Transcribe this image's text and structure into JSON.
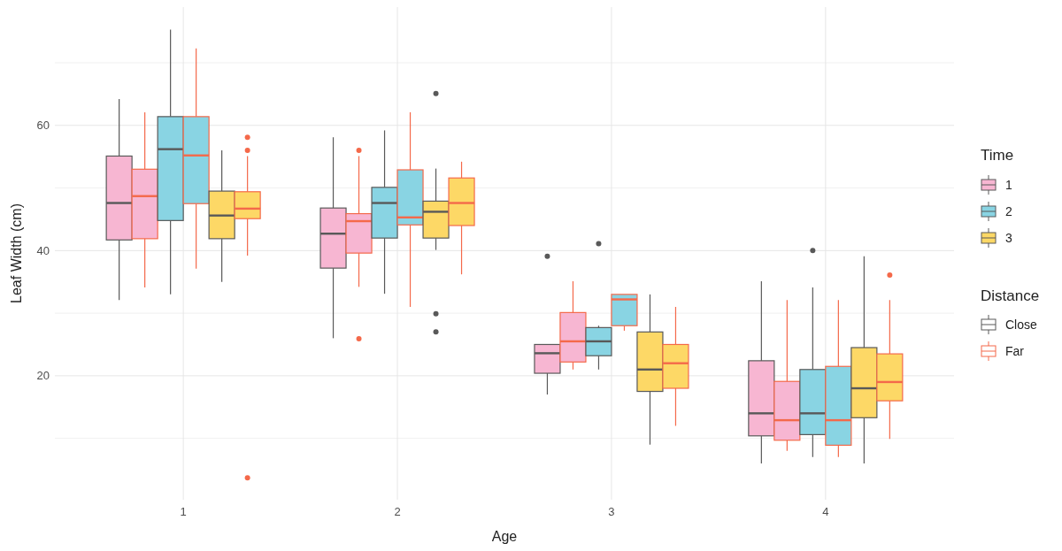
{
  "chart_data": {
    "type": "box",
    "xlabel": "Age",
    "ylabel": "Leaf Width (cm)",
    "legend_title": "Time",
    "annotations": [
      "Distance",
      "Close",
      "Far"
    ],
    "categories": [
      "1",
      "2",
      "3",
      "4"
    ],
    "ylim": [
      0.2,
      78.9
    ],
    "yticks": [
      {
        "value": 10,
        "label": null
      },
      20,
      {
        "value": 30,
        "label": null
      },
      40,
      {
        "value": 50,
        "label": null
      },
      60,
      {
        "value": 70,
        "label": null
      }
    ],
    "grid": true,
    "legend": "right",
    "series": [
      {
        "name": "1",
        "color": "#f7b6d2",
        "boxes": [
          {
            "low": 32.1,
            "q1": 41.7,
            "median": 47.6,
            "q3": 55.1,
            "high": 64.2
          },
          {
            "low": 26.0,
            "q1": 37.2,
            "median": 42.7,
            "q3": 46.8,
            "high": 58.1
          },
          {
            "low": 17.0,
            "q1": 20.4,
            "median": 23.6,
            "q3": 25.0,
            "high": 25.0,
            "outliers": [
              39.1
            ]
          },
          {
            "low": 6.0,
            "q1": 10.4,
            "median": 14.0,
            "q3": 22.4,
            "high": 35.1
          }
        ]
      },
      {
        "color": "#f7b6d2",
        "boxes": [
          {
            "low": 34.1,
            "q1": 41.9,
            "median": 48.7,
            "q3": 53.0,
            "high": 62.1
          },
          {
            "low": 34.2,
            "q1": 39.6,
            "median": 44.7,
            "q3": 45.9,
            "high": 55.1,
            "outliers": [
              56.0,
              25.9
            ]
          },
          {
            "low": 21.0,
            "q1": 22.2,
            "median": 25.5,
            "q3": 30.1,
            "high": 35.1
          },
          {
            "low": 8.0,
            "q1": 9.7,
            "median": 12.9,
            "q3": 19.1,
            "high": 32.1
          }
        ]
      },
      {
        "name": "2",
        "color": "#89d4e3",
        "boxes": [
          {
            "low": 33.0,
            "q1": 44.8,
            "median": 56.2,
            "q3": 61.4,
            "high": 75.3
          },
          {
            "low": 33.1,
            "q1": 42.0,
            "median": 47.6,
            "q3": 50.1,
            "high": 59.2
          },
          {
            "low": 21.0,
            "q1": 23.2,
            "median": 25.5,
            "q3": 27.7,
            "high": 28.0,
            "outliers": [
              41.1
            ]
          },
          {
            "low": 7.0,
            "q1": 10.6,
            "median": 14.0,
            "q3": 21.0,
            "high": 34.1,
            "outliers": [
              40.0
            ]
          }
        ]
      },
      {
        "color": "#89d4e3",
        "boxes": [
          {
            "low": 37.1,
            "q1": 47.5,
            "median": 55.2,
            "q3": 61.4,
            "high": 72.3
          },
          {
            "low": 31.0,
            "q1": 44.1,
            "median": 45.3,
            "q3": 52.9,
            "high": 62.1
          },
          {
            "low": 27.2,
            "q1": 28.0,
            "median": 32.2,
            "q3": 33.0,
            "high": 33.0
          },
          {
            "low": 7.0,
            "q1": 8.9,
            "median": 12.9,
            "q3": 21.5,
            "high": 32.1
          }
        ]
      },
      {
        "name": "3",
        "color": "#fdd866",
        "boxes": [
          {
            "low": 35.0,
            "q1": 41.9,
            "median": 45.6,
            "q3": 49.5,
            "high": 56.0
          },
          {
            "low": 40.1,
            "q1": 42.0,
            "median": 46.2,
            "q3": 47.9,
            "high": 53.1,
            "outliers": [
              65.1,
              29.9,
              27.0
            ]
          },
          {
            "low": 9.0,
            "q1": 17.5,
            "median": 21.0,
            "q3": 27.0,
            "high": 33.0
          },
          {
            "low": 6.0,
            "q1": 13.3,
            "median": 18.0,
            "q3": 24.5,
            "high": 39.1
          }
        ]
      },
      {
        "color": "#fdd866",
        "boxes": [
          {
            "low": 39.2,
            "q1": 45.1,
            "median": 46.7,
            "q3": 49.4,
            "high": 55.1,
            "outliers": [
              58.1,
              56.0,
              3.7
            ]
          },
          {
            "low": 36.2,
            "q1": 44.0,
            "median": 47.6,
            "q3": 51.6,
            "high": 54.2
          },
          {
            "low": 12.0,
            "q1": 18.0,
            "median": 22.0,
            "q3": 25.0,
            "high": 31.0
          },
          {
            "low": 9.9,
            "q1": 16.0,
            "median": 19.0,
            "q3": 23.5,
            "high": 32.1,
            "outliers": [
              36.1
            ]
          }
        ]
      }
    ]
  }
}
